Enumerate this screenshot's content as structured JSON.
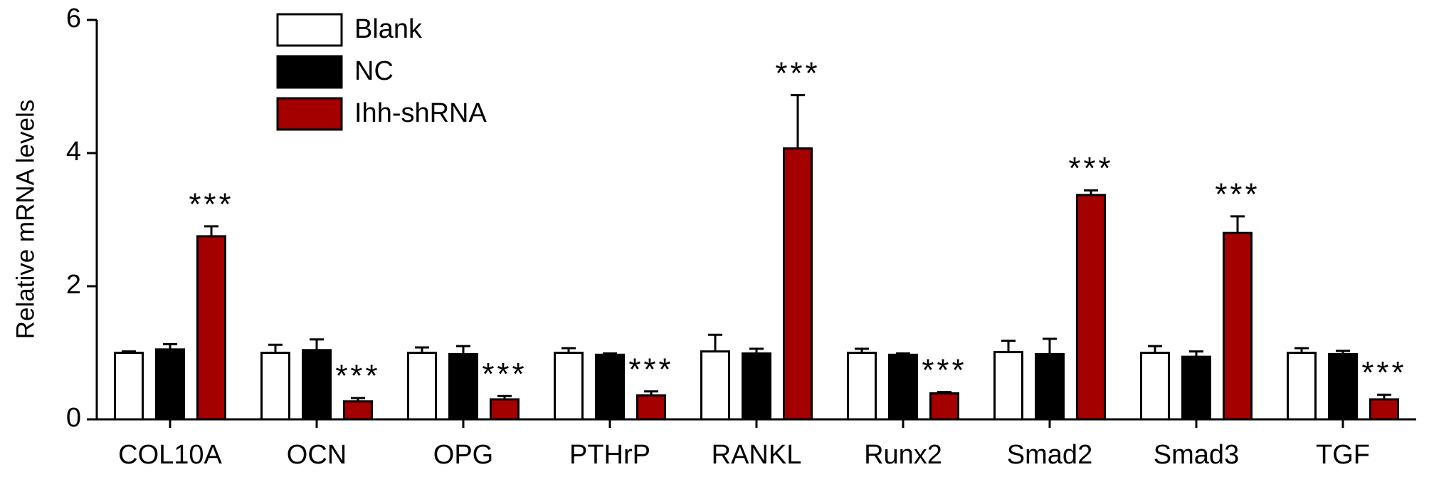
{
  "chart_data": {
    "type": "bar",
    "y_label": "Relative mRNA levels",
    "categories": [
      "COL10A",
      "OCN",
      "OPG",
      "PTHrP",
      "RANKL",
      "Runx2",
      "Smad2",
      "Smad3",
      "TGF"
    ],
    "series": [
      {
        "name": "Blank",
        "color": "#ffffff",
        "values": [
          1.0,
          1.0,
          1.0,
          1.0,
          1.02,
          1.0,
          1.01,
          1.0,
          1.0
        ],
        "errors": [
          0.02,
          0.12,
          0.08,
          0.07,
          0.25,
          0.06,
          0.17,
          0.1,
          0.07
        ]
      },
      {
        "name": "NC",
        "color": "#000000",
        "values": [
          1.05,
          1.04,
          0.98,
          0.97,
          0.99,
          0.97,
          0.98,
          0.94,
          0.98
        ],
        "errors": [
          0.08,
          0.16,
          0.12,
          0.02,
          0.07,
          0.02,
          0.23,
          0.08,
          0.05
        ]
      },
      {
        "name": "Ihh-shRNA",
        "color": "#a50000",
        "values": [
          2.75,
          0.27,
          0.3,
          0.36,
          4.07,
          0.39,
          3.37,
          2.8,
          0.3
        ],
        "errors": [
          0.15,
          0.05,
          0.05,
          0.06,
          0.8,
          0.02,
          0.07,
          0.25,
          0.07
        ],
        "significance": [
          "***",
          "***",
          "***",
          "***",
          "***",
          "***",
          "***",
          "***",
          "***"
        ]
      }
    ],
    "ylim": [
      0,
      6
    ],
    "yticks": [
      0,
      2,
      4,
      6
    ],
    "grid": false,
    "legend": "top-left"
  }
}
